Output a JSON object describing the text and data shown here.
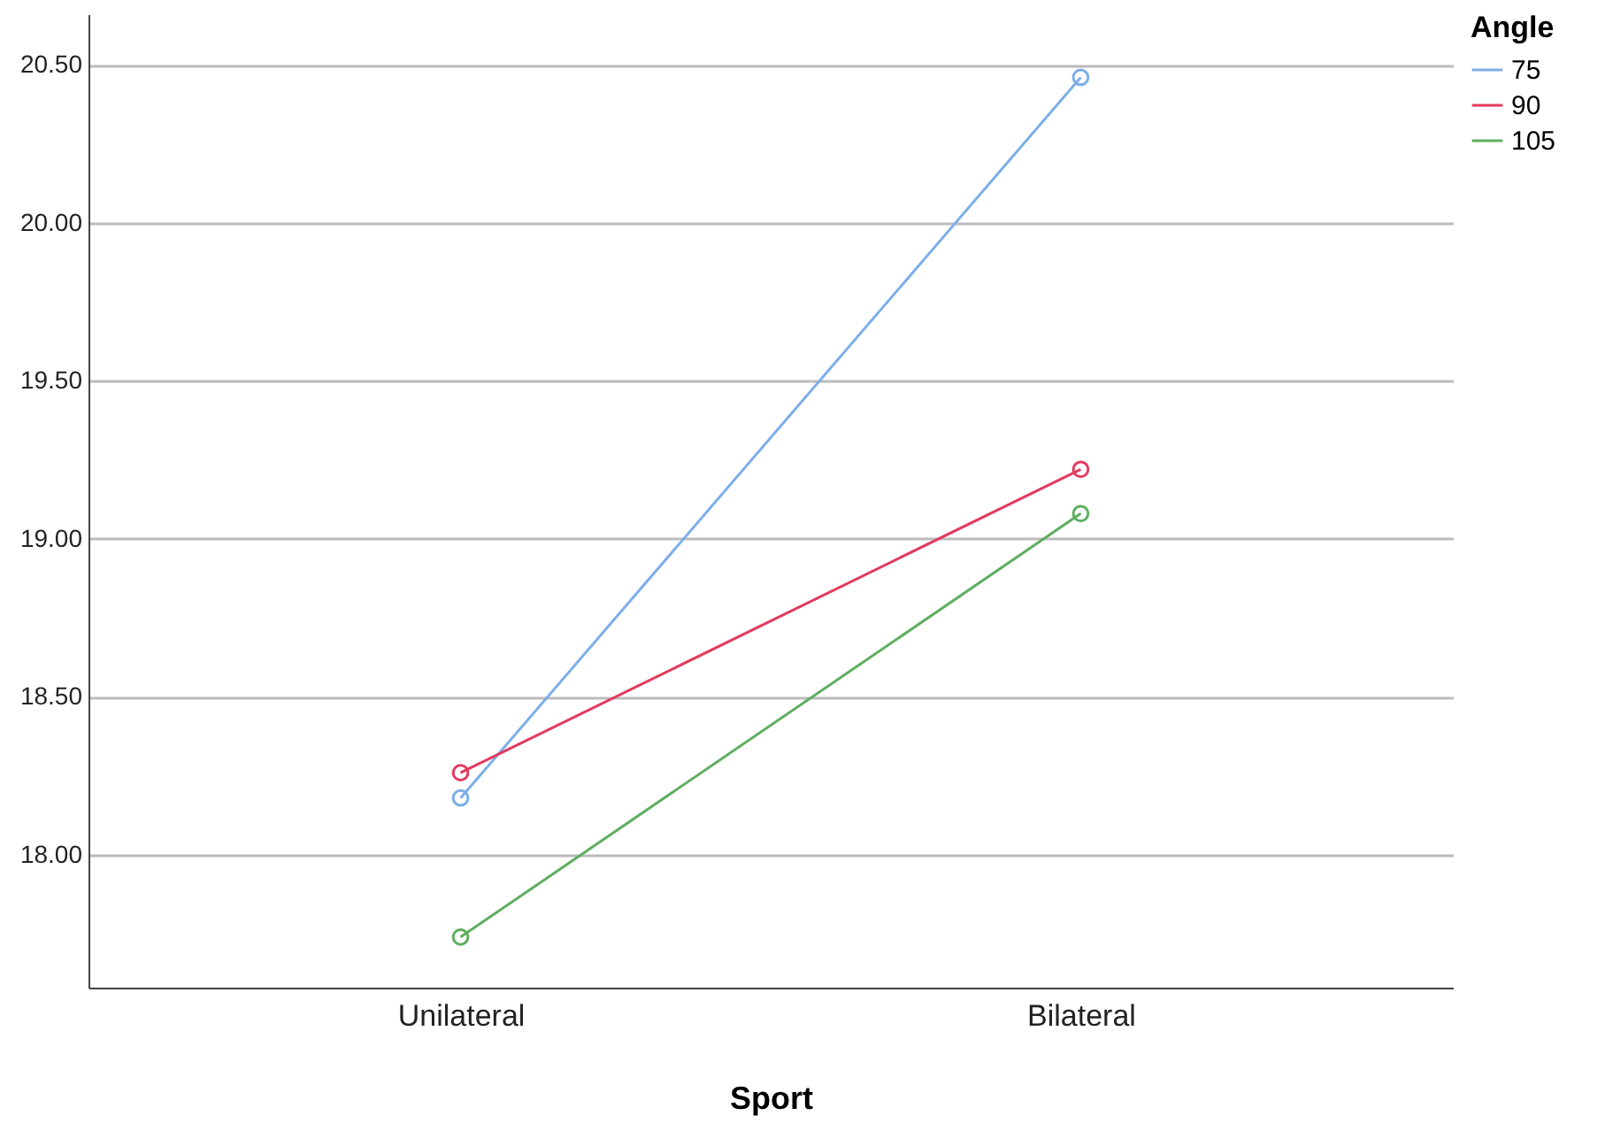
{
  "chart_data": {
    "type": "line",
    "xlabel": "Sport",
    "legend_title": "Angle",
    "categories": [
      "Unilateral",
      "Bilateral"
    ],
    "series": [
      {
        "name": "75",
        "color": "#7eaee8",
        "values": [
          18.18,
          20.46
        ]
      },
      {
        "name": "90",
        "color": "#e23b5f",
        "values": [
          18.26,
          19.22
        ]
      },
      {
        "name": "105",
        "color": "#5fae5f",
        "values": [
          17.74,
          19.08
        ]
      }
    ],
    "ylim": [
      17.58,
      20.66
    ],
    "yticks": [
      {
        "value": 18,
        "label": "18.00"
      },
      {
        "value": 18.5,
        "label": "18.50"
      },
      {
        "value": 19,
        "label": "19.00"
      },
      {
        "value": 19.5,
        "label": "19.50"
      },
      {
        "value": 20,
        "label": "20.00"
      },
      {
        "value": 20.5,
        "label": "20.50"
      }
    ],
    "grid": "y",
    "legend": "top right",
    "marker": "circle",
    "line_style": "solid"
  }
}
